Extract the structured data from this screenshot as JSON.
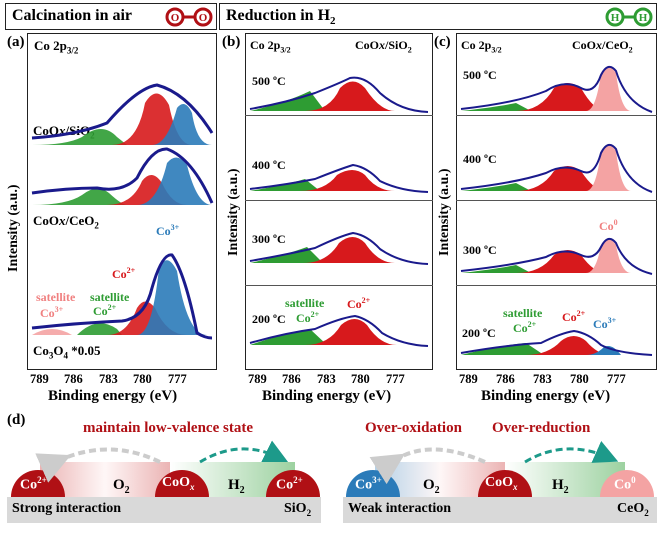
{
  "headers": {
    "air": "Calcination in air",
    "h2": "Reduction in H",
    "h2_sub": "2",
    "o_atom": "O",
    "h_atom": "H"
  },
  "panels": {
    "a": {
      "label": "(a)",
      "core": "Co 2p",
      "core_sub": "3/2",
      "sample1": "CoO",
      "sample1_x": "x",
      "sample1_tail": "/SiO",
      "sample1_sub": "2",
      "sample2": "CoO",
      "sample2_x": "x",
      "sample2_tail": "/CeO",
      "sample2_sub": "2",
      "sample3": "Co",
      "sample3_sub1": "3",
      "sample3_mid": "O",
      "sample3_sub2": "4",
      "sample3_tail": " *0.05",
      "satellite1": "satellite",
      "satellite2": "satellite",
      "co3_1": "Co",
      "co3_1_sup": "3+",
      "co2_1": "Co",
      "co2_1_sup": "2+",
      "co2_2": "Co",
      "co2_2_sup": "2+",
      "co3_2": "Co",
      "co3_2_sup": "3+"
    },
    "b": {
      "label": "(b)",
      "core": "Co 2p",
      "core_sub": "3/2",
      "sample": "CoO",
      "sample_x": "x",
      "sample_tail": "/SiO",
      "sample_sub": "2",
      "temps": [
        "500 ºC",
        "400 ºC",
        "300 ºC",
        "200 ºC"
      ],
      "satellite": "satellite",
      "co2a": "Co",
      "co2a_sup": "2+",
      "co2b": "Co",
      "co2b_sup": "2+"
    },
    "c": {
      "label": "(c)",
      "core": "Co 2p",
      "core_sub": "3/2",
      "sample": "CoO",
      "sample_x": "x",
      "sample_tail": "/CeO",
      "sample_sub": "2",
      "temps": [
        "500 ºC",
        "400 ºC",
        "300 ºC",
        "200 ºC"
      ],
      "satellite": "satellite",
      "co2a": "Co",
      "co2a_sup": "2+",
      "co2b": "Co",
      "co2b_sup": "2+",
      "co3": "Co",
      "co3_sup": "3+",
      "co0": "Co",
      "co0_sup": "0"
    }
  },
  "axis": {
    "ticks": [
      "789",
      "786",
      "783",
      "780",
      "777"
    ],
    "xlabel": "Binding energy (eV)",
    "ylabel": "Intensity (a.u.)"
  },
  "panel_d": {
    "label": "(d)",
    "left_title": "maintain low-valence state",
    "left_bar": "Strong interaction",
    "left_support": "SiO",
    "left_support_sub": "2",
    "left_nodes": [
      {
        "t": "Co",
        "s": "2+"
      },
      {
        "t": "CoO",
        "s": "x"
      },
      {
        "t": "Co",
        "s": "2+"
      }
    ],
    "left_gas1": "O",
    "left_gas1_sub": "2",
    "left_gas2": "H",
    "left_gas2_sub": "2",
    "right_title1": "Over-oxidation",
    "right_title2": "Over-reduction",
    "right_bar": "Weak interaction",
    "right_support": "CeO",
    "right_support_sub": "2",
    "right_nodes": [
      {
        "t": "Co",
        "s": "3+"
      },
      {
        "t": "CoO",
        "s": "x"
      },
      {
        "t": "Co",
        "s": "0"
      }
    ],
    "right_gas1": "O",
    "right_gas1_sub": "2",
    "right_gas2": "H",
    "right_gas2_sub": "2"
  },
  "colors": {
    "red": "#d7191c",
    "green": "#2e9c33",
    "blue": "#2b7bb9",
    "pink": "#f4a3a3",
    "navy": "#1a1a8c",
    "darkred": "#b01015"
  }
}
